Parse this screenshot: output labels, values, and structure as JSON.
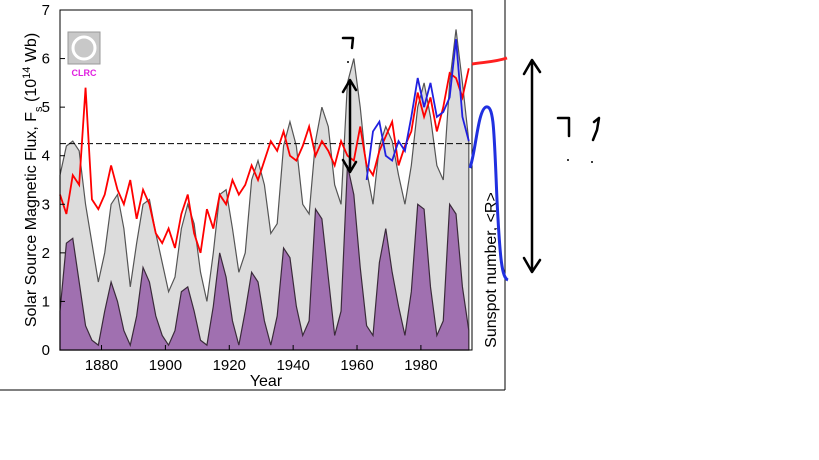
{
  "chart_data": {
    "type": "line",
    "xlabel": "Year",
    "ylabel": [
      "Solar Source Magnetic Flux, F",
      "s",
      " (10",
      "14",
      " Wb)"
    ],
    "y2label": "Sunspot number, <R>",
    "logo_text": "CLRC",
    "xlim": [
      1867,
      1996
    ],
    "ylim": [
      0,
      7
    ],
    "xticks": [
      1880,
      1900,
      1920,
      1940,
      1960,
      1980
    ],
    "yticks": [
      0,
      1,
      2,
      3,
      4,
      5,
      6,
      7
    ],
    "reference_line": 4.25,
    "x": [
      1867,
      1869,
      1871,
      1873,
      1875,
      1877,
      1879,
      1881,
      1883,
      1885,
      1887,
      1889,
      1891,
      1893,
      1895,
      1897,
      1899,
      1901,
      1903,
      1905,
      1907,
      1909,
      1911,
      1913,
      1915,
      1917,
      1919,
      1921,
      1923,
      1925,
      1927,
      1929,
      1931,
      1933,
      1935,
      1937,
      1939,
      1941,
      1943,
      1945,
      1947,
      1949,
      1951,
      1953,
      1955,
      1957,
      1959,
      1961,
      1963,
      1965,
      1967,
      1969,
      1971,
      1973,
      1975,
      1977,
      1979,
      1981,
      1983,
      1985,
      1987,
      1989,
      1991,
      1993,
      1995
    ],
    "series": [
      {
        "color": "#555555",
        "fill": "#dcdcdc",
        "values": [
          3.6,
          4.2,
          4.3,
          4.1,
          3.0,
          2.2,
          1.4,
          2.0,
          3.0,
          3.2,
          2.5,
          1.3,
          2.2,
          3.0,
          3.1,
          2.4,
          1.8,
          1.2,
          1.5,
          2.5,
          3.0,
          2.6,
          1.6,
          1.0,
          2.0,
          3.2,
          3.3,
          2.5,
          1.6,
          2.0,
          3.5,
          3.9,
          3.4,
          2.4,
          2.6,
          4.2,
          4.7,
          4.2,
          3.0,
          2.8,
          4.3,
          5.0,
          4.6,
          3.4,
          3.0,
          5.5,
          6.0,
          5.0,
          3.7,
          3.0,
          4.2,
          4.6,
          4.3,
          3.6,
          3.0,
          3.8,
          5.0,
          5.5,
          4.8,
          3.8,
          3.5,
          5.5,
          6.6,
          5.5,
          4.3
        ]
      },
      {
        "color": "#3a2a3a",
        "fill": "#a070b0",
        "values": [
          0.8,
          2.2,
          2.3,
          1.4,
          0.5,
          0.2,
          0.1,
          0.8,
          1.4,
          1.0,
          0.4,
          0.1,
          0.7,
          1.7,
          1.4,
          0.7,
          0.3,
          0.1,
          0.4,
          1.2,
          1.3,
          0.8,
          0.2,
          0.1,
          0.9,
          2.0,
          1.5,
          0.6,
          0.1,
          0.8,
          1.6,
          1.4,
          0.6,
          0.1,
          0.7,
          2.1,
          1.9,
          0.9,
          0.3,
          0.6,
          2.9,
          2.7,
          1.5,
          0.3,
          0.8,
          3.8,
          3.2,
          1.7,
          0.5,
          0.3,
          1.8,
          2.5,
          1.6,
          0.9,
          0.3,
          1.2,
          3.0,
          2.9,
          1.3,
          0.3,
          0.6,
          3.0,
          2.8,
          1.3,
          0.4
        ]
      },
      {
        "color": "#ff0000",
        "values": [
          3.2,
          2.8,
          3.6,
          3.4,
          5.4,
          3.1,
          2.9,
          3.2,
          3.8,
          3.3,
          3.0,
          3.5,
          2.7,
          3.3,
          3.0,
          2.4,
          2.2,
          2.5,
          2.1,
          2.8,
          3.2,
          2.4,
          2.0,
          2.9,
          2.5,
          3.2,
          3.0,
          3.5,
          3.2,
          3.4,
          3.8,
          3.5,
          3.9,
          4.3,
          4.1,
          4.5,
          4.0,
          3.9,
          4.2,
          4.6,
          4.0,
          4.3,
          4.1,
          3.8,
          4.3,
          4.0,
          3.9,
          4.6,
          3.8,
          3.6,
          4.1,
          4.4,
          4.7,
          3.8,
          4.2,
          4.5,
          5.3,
          4.8,
          5.2,
          4.5,
          5.0,
          5.7,
          5.6,
          5.2,
          5.8
        ]
      },
      {
        "color": "#2020e0",
        "values": [
          null,
          null,
          null,
          null,
          null,
          null,
          null,
          null,
          null,
          null,
          null,
          null,
          null,
          null,
          null,
          null,
          null,
          null,
          null,
          null,
          null,
          null,
          null,
          null,
          null,
          null,
          null,
          null,
          null,
          null,
          null,
          null,
          null,
          null,
          null,
          null,
          null,
          null,
          null,
          null,
          null,
          null,
          null,
          null,
          null,
          null,
          null,
          null,
          3.5,
          4.5,
          4.7,
          4.0,
          3.9,
          4.3,
          4.1,
          4.8,
          5.6,
          5.0,
          5.5,
          4.8,
          4.9,
          5.2,
          6.4,
          4.8,
          4.3
        ]
      }
    ]
  }
}
